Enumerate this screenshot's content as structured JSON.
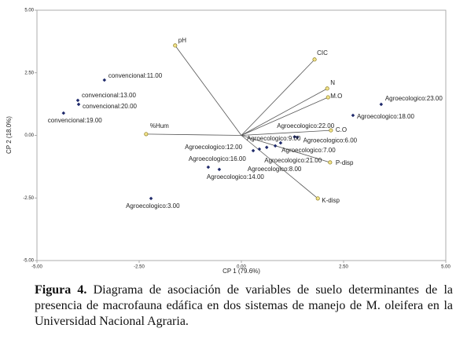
{
  "chart_data": {
    "type": "biplot",
    "xlabel": "CP 1 (79.6%)",
    "ylabel": "CP 2 (18.0%)",
    "xlim": [
      -5,
      5
    ],
    "ylim": [
      -5,
      5
    ],
    "xticks": [
      {
        "value": -5,
        "label": "-5.00"
      },
      {
        "value": -2.5,
        "label": "-2.50"
      },
      {
        "value": 0,
        "label": "0.00"
      },
      {
        "value": 2.5,
        "label": "2.50"
      },
      {
        "value": 5,
        "label": "5.00"
      }
    ],
    "yticks": [
      {
        "value": -5,
        "label": "-5.00"
      },
      {
        "value": -2.5,
        "label": "-2.50"
      },
      {
        "value": 0,
        "label": "0.00"
      },
      {
        "value": 2.5,
        "label": "2.50"
      },
      {
        "value": 5,
        "label": "5.00"
      }
    ],
    "points": {
      "color": "#1f2a6b",
      "labels": [
        "convencional:11.00",
        "convencional:13.00",
        "convencional:20.00",
        "convencional:19.00",
        "Agroecologico:23.00",
        "Agroecologico:18.00",
        "Agroecologico:22.00",
        "Agroecologico:6.00",
        "Agroecologico:9.00",
        "Agroecologico:7.00",
        "Agroecologico:12.00",
        "Agroecologico:21.00",
        "Agroecologico:8.00",
        "Agroecologico:16.00",
        "Agroecologico:14.00",
        "Agroecologico:3.00"
      ],
      "x": [
        -3.35,
        -4.0,
        -3.98,
        -4.35,
        3.42,
        2.73,
        1.37,
        1.3,
        0.96,
        0.83,
        0.29,
        0.62,
        0.44,
        -0.81,
        -0.54,
        -2.21
      ],
      "y": [
        2.21,
        1.4,
        1.24,
        0.89,
        1.24,
        0.8,
        -0.08,
        -0.06,
        -0.3,
        -0.42,
        -0.61,
        -0.48,
        -0.55,
        -1.27,
        -1.36,
        -2.52
      ]
    },
    "vectors": {
      "color": "#f2e38a",
      "labels": [
        "pH",
        "CIC",
        "N",
        "M.O",
        "%Hum",
        "C.O",
        "P-disp",
        "K-disp"
      ],
      "x": [
        -1.62,
        1.79,
        2.1,
        2.12,
        -2.33,
        2.19,
        2.17,
        1.87
      ],
      "y": [
        3.59,
        3.03,
        1.87,
        1.52,
        0.05,
        0.2,
        -1.08,
        -2.52
      ]
    }
  },
  "caption": {
    "label": "Figura 4.",
    "text": "Diagrama de asociación de variables de suelo determinantes de la presencia de macrofauna edáfica en dos sistemas de manejo de M. oleifera en la Universidad Nacional Agraria."
  }
}
